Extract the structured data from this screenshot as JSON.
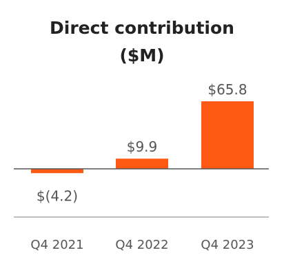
{
  "chart_data": {
    "type": "bar",
    "title": "Direct contribution",
    "subtitle": "($M)",
    "categories": [
      "Q4 2021",
      "Q4 2022",
      "Q4 2023"
    ],
    "values": [
      -4.2,
      9.9,
      65.8
    ],
    "value_labels": [
      "$(4.2)",
      "$9.9",
      "$65.8"
    ],
    "xlabel": "",
    "ylabel": "",
    "bar_color": "#FF5A14",
    "axis_color": "#555555",
    "grid": false,
    "legend": "none"
  }
}
